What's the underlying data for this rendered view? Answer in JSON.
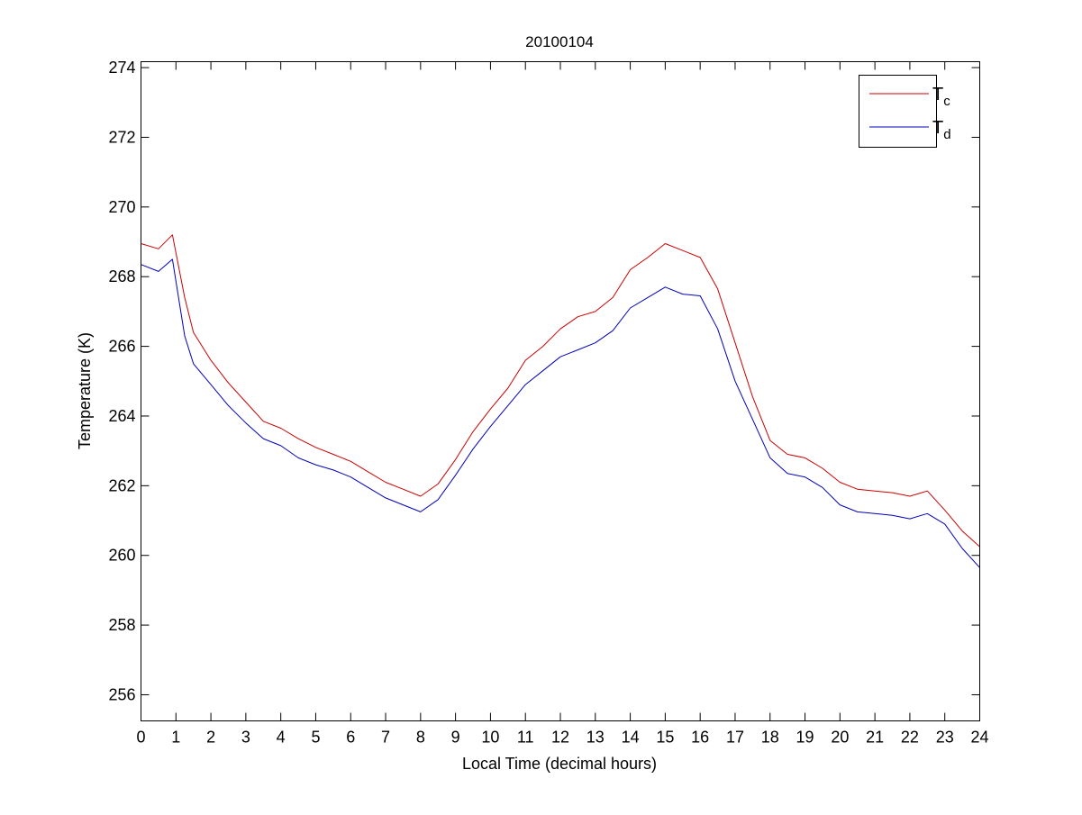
{
  "chart_data": {
    "type": "line",
    "title": "20100104",
    "xlabel": "Local Time (decimal hours)",
    "ylabel": "Temperature (K)",
    "xlim": [
      0,
      24
    ],
    "ylim": [
      255.25,
      274.17
    ],
    "xticks": [
      0,
      1,
      2,
      3,
      4,
      5,
      6,
      7,
      8,
      9,
      10,
      11,
      12,
      13,
      14,
      15,
      16,
      17,
      18,
      19,
      20,
      21,
      22,
      23,
      24
    ],
    "yticks": [
      256,
      258,
      260,
      262,
      264,
      266,
      268,
      270,
      272,
      274
    ],
    "grid": false,
    "legend_placement": "top-right",
    "x": [
      0,
      0.5,
      0.9,
      1.25,
      1.5,
      2,
      2.5,
      3,
      3.5,
      4,
      4.5,
      5,
      5.5,
      6,
      6.5,
      7,
      7.5,
      8,
      8.5,
      9,
      9.5,
      10,
      10.5,
      11,
      11.5,
      12,
      12.5,
      13,
      13.5,
      14,
      14.5,
      15,
      15.5,
      16,
      16.5,
      17,
      17.5,
      18,
      18.5,
      19,
      19.5,
      20,
      20.5,
      21,
      21.5,
      22,
      22.5,
      23,
      23.5,
      24
    ],
    "series": [
      {
        "name_main": "T",
        "name_sub": "c",
        "color": "#cc0000",
        "values": [
          268.95,
          268.8,
          269.2,
          267.4,
          266.4,
          265.6,
          264.95,
          264.4,
          263.85,
          263.65,
          263.35,
          263.1,
          262.9,
          262.7,
          262.4,
          262.1,
          261.9,
          261.7,
          262.05,
          262.75,
          263.55,
          264.2,
          264.8,
          265.6,
          266.0,
          266.5,
          266.85,
          267.0,
          267.4,
          268.2,
          268.55,
          268.95,
          268.75,
          268.55,
          267.65,
          266.1,
          264.55,
          263.3,
          262.9,
          262.8,
          262.5,
          262.1,
          261.9,
          261.85,
          261.8,
          261.7,
          261.85,
          261.3,
          260.7,
          260.25
        ]
      },
      {
        "name_main": "T",
        "name_sub": "d",
        "color": "#0000bb",
        "values": [
          268.35,
          268.15,
          268.5,
          266.3,
          265.5,
          264.9,
          264.3,
          263.8,
          263.35,
          263.15,
          262.8,
          262.6,
          262.45,
          262.25,
          261.95,
          261.65,
          261.45,
          261.25,
          261.6,
          262.3,
          263.05,
          263.7,
          264.3,
          264.9,
          265.3,
          265.7,
          265.9,
          266.1,
          266.45,
          267.1,
          267.4,
          267.7,
          267.5,
          267.45,
          266.5,
          265.0,
          263.9,
          262.8,
          262.35,
          262.25,
          261.95,
          261.45,
          261.25,
          261.2,
          261.15,
          261.05,
          261.2,
          260.9,
          260.2,
          259.65
        ]
      }
    ]
  }
}
